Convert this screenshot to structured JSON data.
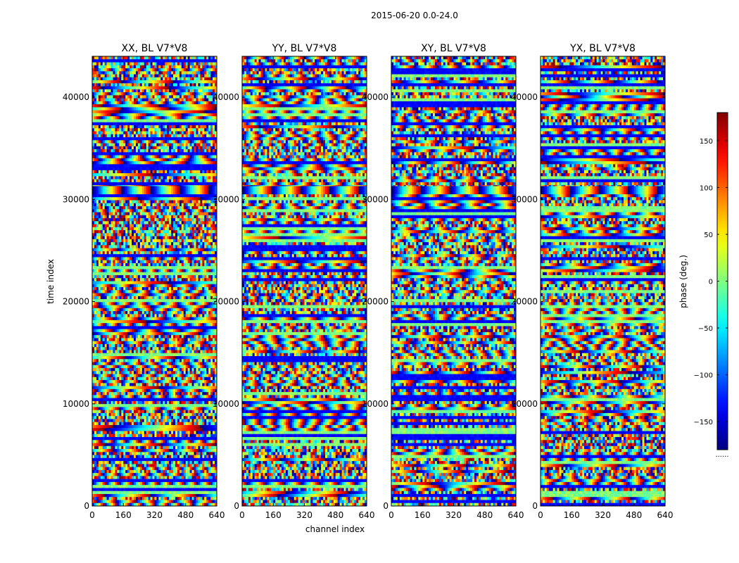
{
  "chart_data": {
    "type": "heatmap",
    "title": "2015-06-20 0.0-24.0",
    "xlabel": "channel index",
    "ylabel": "time index",
    "xlim": [
      0,
      640
    ],
    "ylim": [
      0,
      44000
    ],
    "x_ticks": [
      0,
      160,
      320,
      480,
      640
    ],
    "y_ticks": [
      0,
      10000,
      20000,
      30000,
      40000
    ],
    "panels": [
      {
        "name": "XX, BL V7*V8"
      },
      {
        "name": "YY, BL V7*V8"
      },
      {
        "name": "XY, BL V7*V8"
      },
      {
        "name": "YX, BL V7*V8"
      }
    ],
    "colorbar": {
      "label": "phase (deg.)",
      "colormap": "jet",
      "range": [
        -180,
        180
      ],
      "ticks": [
        -150,
        -100,
        -50,
        0,
        50,
        100,
        150
      ],
      "tick_labels": [
        "−150",
        "−100",
        "−50",
        "0",
        "50",
        "100",
        "150"
      ],
      "footnote": "......"
    }
  }
}
